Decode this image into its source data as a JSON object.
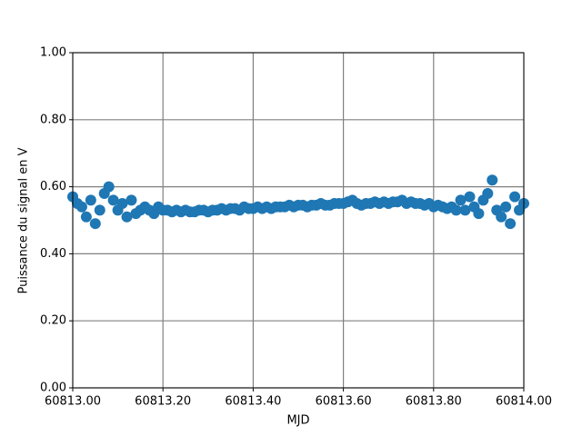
{
  "chart_data": {
    "type": "scatter",
    "xlabel": "MJD",
    "ylabel": "Puissance du signal en V",
    "color": "#1f77b4",
    "grid": true,
    "xlim": [
      60813.0,
      60814.0
    ],
    "xticks": [
      {
        "value": 60813.0,
        "label": "60813.00"
      },
      {
        "value": 60813.2,
        "label": "60813.20"
      },
      {
        "value": 60813.4,
        "label": "60813.40"
      },
      {
        "value": 60813.6,
        "label": "60813.60"
      },
      {
        "value": 60813.8,
        "label": "60813.80"
      },
      {
        "value": 60814.0,
        "label": "60814.00"
      }
    ],
    "ylim": [
      0,
      1
    ],
    "yticks": [
      {
        "value": 0,
        "label": "0.00"
      },
      {
        "value": 0.2,
        "label": "0.20"
      },
      {
        "value": 0.4,
        "label": "0.40"
      },
      {
        "value": 0.6,
        "label": "0.60"
      },
      {
        "value": 0.8,
        "label": "0.80"
      },
      {
        "value": 1,
        "label": "1.00"
      }
    ],
    "x": [
      60813.0,
      60813.01,
      60813.02,
      60813.03,
      60813.04,
      60813.05,
      60813.06,
      60813.07,
      60813.08,
      60813.09,
      60813.1,
      60813.11,
      60813.12,
      60813.13,
      60813.14,
      60813.15,
      60813.16,
      60813.17,
      60813.18,
      60813.19,
      60813.2,
      60813.21,
      60813.22,
      60813.23,
      60813.24,
      60813.25,
      60813.26,
      60813.27,
      60813.28,
      60813.29,
      60813.3,
      60813.31,
      60813.32,
      60813.33,
      60813.34,
      60813.35,
      60813.36,
      60813.37,
      60813.38,
      60813.39,
      60813.4,
      60813.41,
      60813.42,
      60813.43,
      60813.44,
      60813.45,
      60813.46,
      60813.47,
      60813.48,
      60813.49,
      60813.5,
      60813.51,
      60813.52,
      60813.53,
      60813.54,
      60813.55,
      60813.56,
      60813.57,
      60813.58,
      60813.59,
      60813.6,
      60813.61,
      60813.62,
      60813.63,
      60813.64,
      60813.65,
      60813.66,
      60813.67,
      60813.68,
      60813.69,
      60813.7,
      60813.71,
      60813.72,
      60813.73,
      60813.74,
      60813.75,
      60813.76,
      60813.77,
      60813.78,
      60813.79,
      60813.8,
      60813.81,
      60813.82,
      60813.83,
      60813.84,
      60813.85,
      60813.86,
      60813.87,
      60813.88,
      60813.89,
      60813.9,
      60813.91,
      60813.92,
      60813.93,
      60813.94,
      60813.95,
      60813.96,
      60813.97,
      60813.98,
      60813.99,
      60814.0
    ],
    "values": [
      0.57,
      0.55,
      0.54,
      0.51,
      0.56,
      0.49,
      0.53,
      0.58,
      0.6,
      0.56,
      0.53,
      0.55,
      0.51,
      0.56,
      0.52,
      0.53,
      0.54,
      0.53,
      0.52,
      0.54,
      0.53,
      0.53,
      0.525,
      0.53,
      0.525,
      0.53,
      0.525,
      0.525,
      0.53,
      0.53,
      0.525,
      0.53,
      0.53,
      0.535,
      0.53,
      0.535,
      0.535,
      0.53,
      0.54,
      0.535,
      0.535,
      0.54,
      0.535,
      0.54,
      0.535,
      0.54,
      0.54,
      0.54,
      0.545,
      0.54,
      0.545,
      0.545,
      0.54,
      0.545,
      0.545,
      0.55,
      0.545,
      0.545,
      0.55,
      0.55,
      0.55,
      0.555,
      0.56,
      0.55,
      0.545,
      0.55,
      0.55,
      0.555,
      0.55,
      0.555,
      0.55,
      0.555,
      0.555,
      0.56,
      0.55,
      0.555,
      0.55,
      0.55,
      0.545,
      0.55,
      0.54,
      0.545,
      0.54,
      0.535,
      0.54,
      0.53,
      0.56,
      0.53,
      0.57,
      0.54,
      0.52,
      0.56,
      0.58,
      0.62,
      0.53,
      0.51,
      0.54,
      0.49,
      0.57,
      0.53,
      0.55
    ]
  }
}
